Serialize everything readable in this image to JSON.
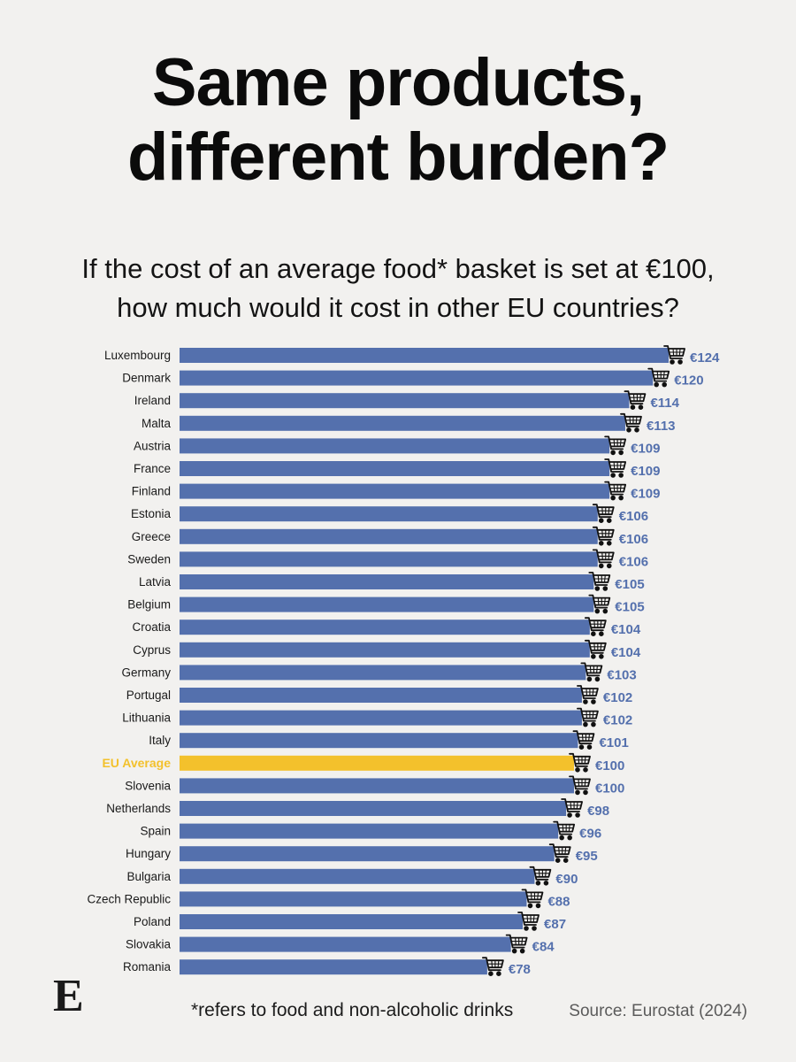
{
  "title_line1": "Same products,",
  "title_line2": "different burden?",
  "subtitle_line1": "If the cost of an average food* basket is set at €100,",
  "subtitle_line2": "how much would it cost in other EU countries?",
  "footnote": "*refers to food and non-alcoholic drinks",
  "source": "Source: Eurostat (2024)",
  "logo_letter": "E",
  "colors": {
    "bar": "#5470ad",
    "highlight": "#f3c12c",
    "value_text": "#5470ad",
    "label_text": "#1a1a1a",
    "cart": "#111111"
  },
  "chart_data": {
    "type": "bar",
    "orientation": "horizontal",
    "title": "If the cost of an average food* basket is set at €100, how much would it cost in other EU countries?",
    "xlabel": "",
    "ylabel": "",
    "currency": "€",
    "highlight": "EU Average",
    "categories": [
      "Luxembourg",
      "Denmark",
      "Ireland",
      "Malta",
      "Austria",
      "France",
      "Finland",
      "Estonia",
      "Greece",
      "Sweden",
      "Latvia",
      "Belgium",
      "Croatia",
      "Cyprus",
      "Germany",
      "Portugal",
      "Lithuania",
      "Italy",
      "EU Average",
      "Slovenia",
      "Netherlands",
      "Spain",
      "Hungary",
      "Bulgaria",
      "Czech Republic",
      "Poland",
      "Slovakia",
      "Romania"
    ],
    "values": [
      124,
      120,
      114,
      113,
      109,
      109,
      109,
      106,
      106,
      106,
      105,
      105,
      104,
      104,
      103,
      102,
      102,
      101,
      100,
      100,
      98,
      96,
      95,
      90,
      88,
      87,
      84,
      78
    ],
    "labels": [
      "€124",
      "€120",
      "€114",
      "€113",
      "€109",
      "€109",
      "€109",
      "€106",
      "€106",
      "€106",
      "€105",
      "€105",
      "€104",
      "€104",
      "€103",
      "€102",
      "€102",
      "€101",
      "€100",
      "€100",
      "€98",
      "€96",
      "€95",
      "€90",
      "€88",
      "€87",
      "€84",
      "€78"
    ]
  }
}
